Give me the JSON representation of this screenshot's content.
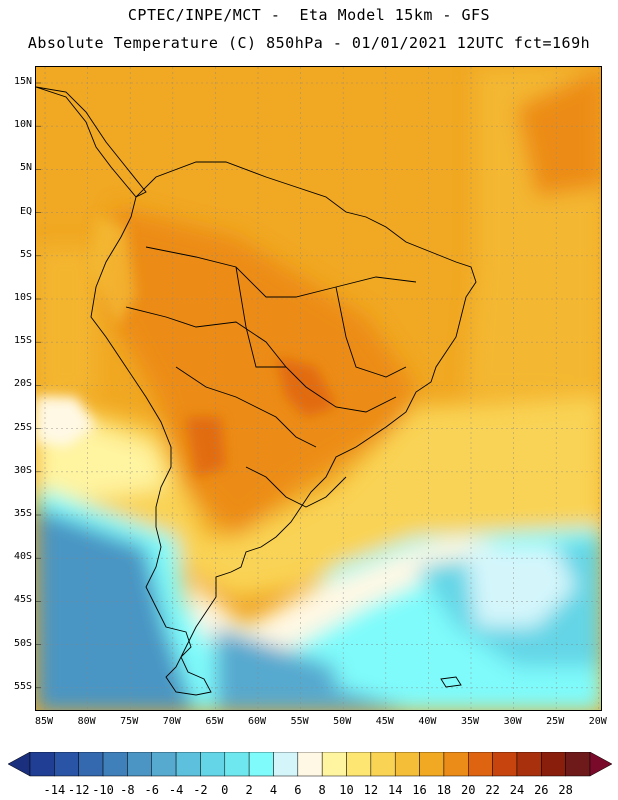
{
  "header": {
    "line1": "CPTEC/INPE/MCT -  Eta Model 15km - GFS",
    "line2": "Absolute Temperature (C) 850hPa - 01/01/2021 12UTC fct=169h"
  },
  "map": {
    "latitude_ticks": [
      "15N",
      "10N",
      "5N",
      "EQ",
      "5S",
      "10S",
      "15S",
      "20S",
      "25S",
      "30S",
      "35S",
      "40S",
      "45S",
      "50S",
      "55S"
    ],
    "longitude_ticks": [
      "85W",
      "80W",
      "75W",
      "70W",
      "65W",
      "60W",
      "55W",
      "50W",
      "45W",
      "40W",
      "35W",
      "30W",
      "25W",
      "20W"
    ],
    "extent": {
      "lon_min": -85,
      "lon_max": -20,
      "lat_min": -58,
      "lat_max": 16
    }
  },
  "colorbar": {
    "labels": [
      "-14",
      "-12",
      "-10",
      "-8",
      "-6",
      "-4",
      "-2",
      "0",
      "2",
      "4",
      "6",
      "8",
      "10",
      "12",
      "14",
      "16",
      "18",
      "20",
      "22",
      "24",
      "26",
      "28"
    ],
    "colors": [
      "#1f3e94",
      "#2a55a6",
      "#3469b0",
      "#3f7fba",
      "#4a95c4",
      "#56a9cf",
      "#5dc0dc",
      "#63d5e6",
      "#6ee8ee",
      "#7ffbfb",
      "#d4f6fb",
      "#fff8e4",
      "#fff4a0",
      "#fde672",
      "#f9d354",
      "#f5be38",
      "#f1a822",
      "#ec8c18",
      "#df6412",
      "#c8440e",
      "#a8300c",
      "#8a1e0c",
      "#6e1a1a"
    ],
    "left_arrow_color": "#1a2f7e",
    "right_arrow_color": "#7a0a2a"
  }
}
